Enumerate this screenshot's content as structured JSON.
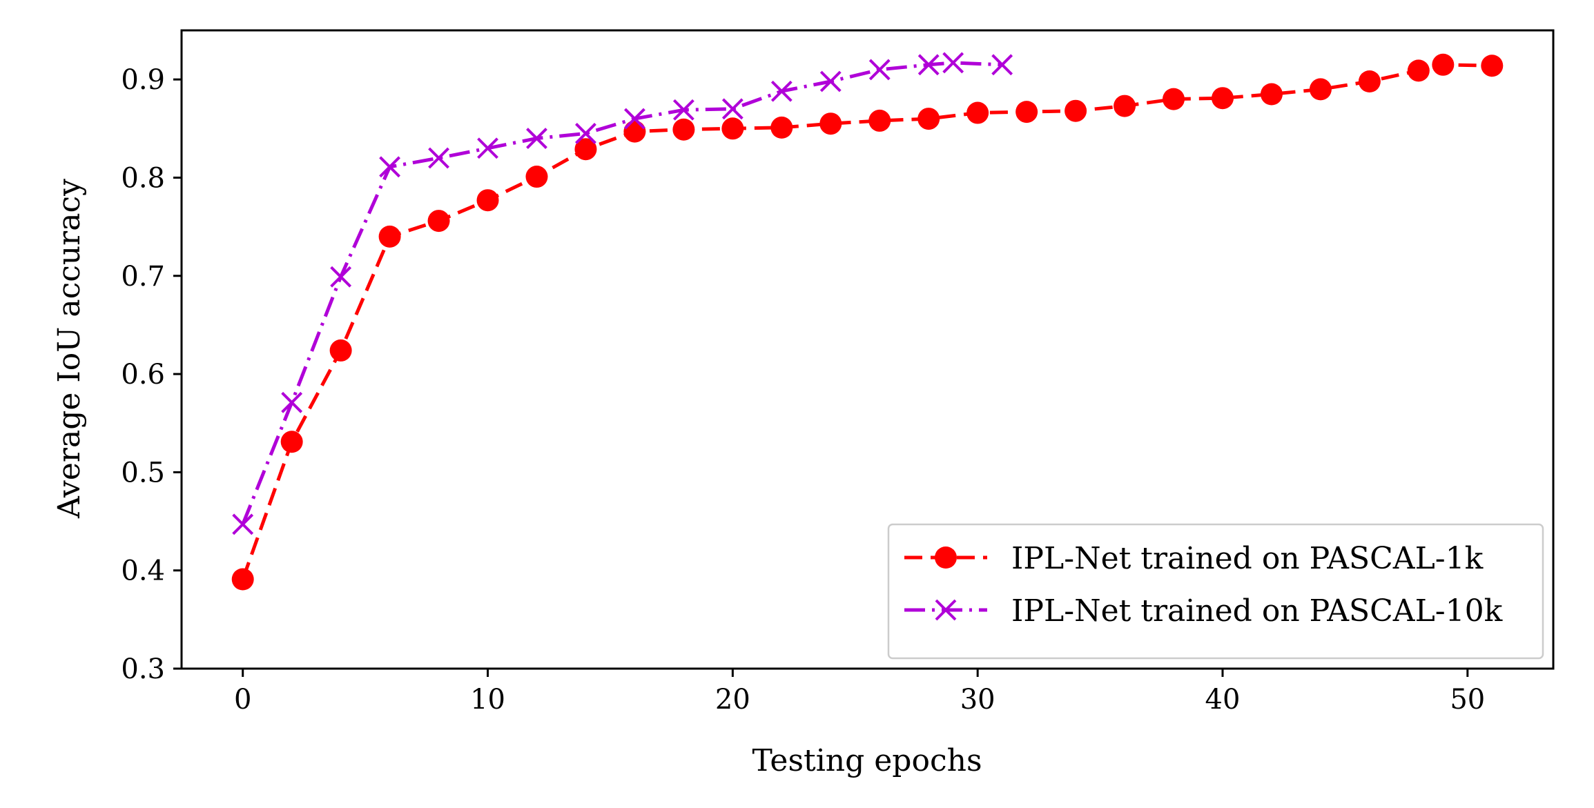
{
  "chart_data": {
    "type": "line",
    "title": "",
    "xlabel": "Testing epochs",
    "ylabel": "Average IoU accuracy",
    "xlim": [
      -2.5,
      53.5
    ],
    "ylim": [
      0.3,
      0.95
    ],
    "xticks": [
      0,
      10,
      20,
      30,
      40,
      50
    ],
    "yticks": [
      0.3,
      0.4,
      0.5,
      0.6,
      0.7,
      0.8,
      0.9
    ],
    "xtick_labels": [
      "0",
      "10",
      "20",
      "30",
      "40",
      "50"
    ],
    "ytick_labels": [
      "0.3",
      "0.4",
      "0.5",
      "0.6",
      "0.7",
      "0.8",
      "0.9"
    ],
    "grid": false,
    "legend_position": "lower-right",
    "series": [
      {
        "name": "IPL-Net trained on PASCAL-1k",
        "color": "#ff0000",
        "marker": "circle",
        "linestyle": "dashed",
        "x": [
          0,
          2,
          4,
          6,
          8,
          10,
          12,
          14,
          16,
          18,
          20,
          22,
          24,
          26,
          28,
          30,
          32,
          34,
          36,
          38,
          40,
          42,
          44,
          46,
          48,
          49,
          51
        ],
        "y": [
          0.391,
          0.531,
          0.624,
          0.74,
          0.756,
          0.777,
          0.801,
          0.829,
          0.847,
          0.849,
          0.85,
          0.851,
          0.855,
          0.858,
          0.86,
          0.866,
          0.867,
          0.868,
          0.873,
          0.88,
          0.881,
          0.885,
          0.89,
          0.898,
          0.909,
          0.915,
          0.914
        ]
      },
      {
        "name": "IPL-Net trained on PASCAL-10k",
        "color": "#b000d8",
        "marker": "x",
        "linestyle": "dashdot",
        "x": [
          0,
          2,
          4,
          6,
          8,
          10,
          12,
          14,
          16,
          18,
          20,
          22,
          24,
          26,
          28,
          29,
          31
        ],
        "y": [
          0.447,
          0.571,
          0.699,
          0.811,
          0.82,
          0.83,
          0.84,
          0.845,
          0.86,
          0.869,
          0.87,
          0.888,
          0.898,
          0.91,
          0.915,
          0.917,
          0.915
        ]
      }
    ]
  }
}
